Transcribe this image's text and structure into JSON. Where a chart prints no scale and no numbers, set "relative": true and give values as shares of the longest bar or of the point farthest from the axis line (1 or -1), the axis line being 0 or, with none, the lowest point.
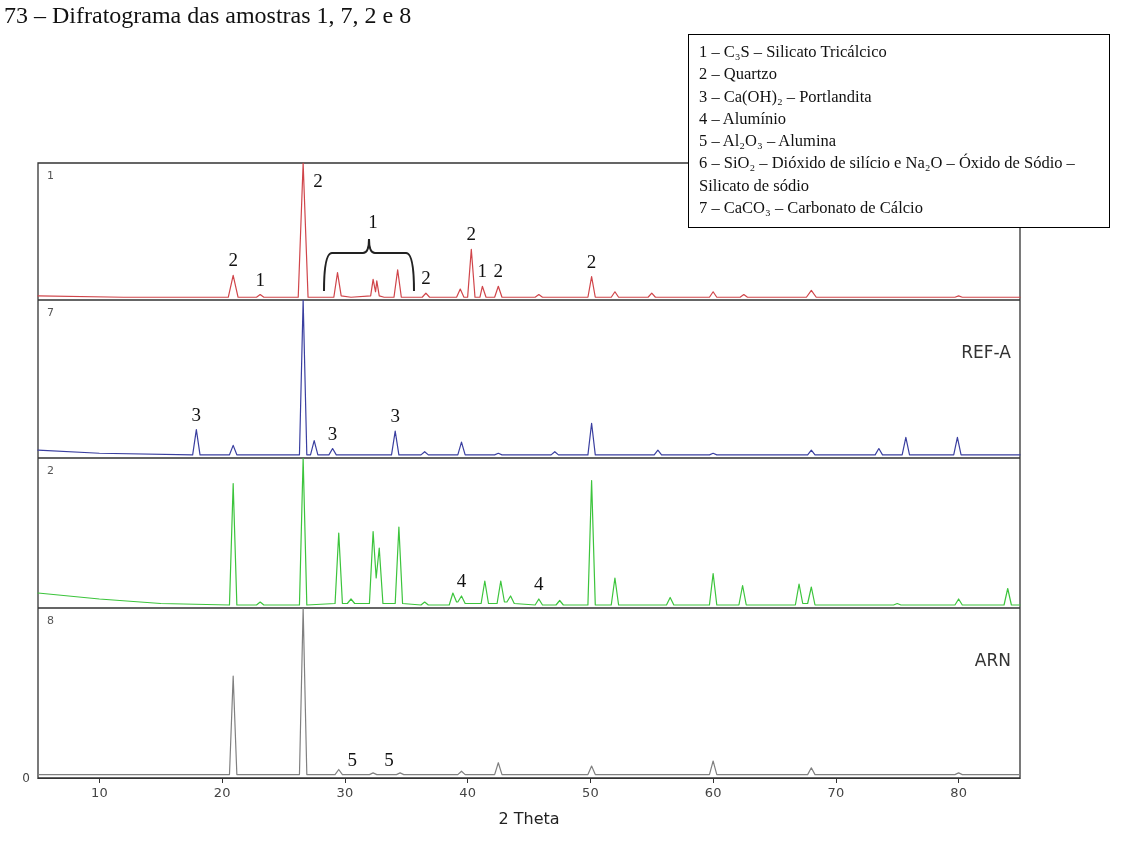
{
  "chart_data": [
    {
      "type": "other",
      "title": "73 – Difratograma das amostras 1, 7, 2 e 8",
      "annotations": [
        "1 – C₃S – Silicato Tricálcico",
        "2 – Quartzo",
        "3 – Ca(OH)₂ – Portlandita",
        "4 – Alumínio",
        "5 – Al₂O₃ – Alumina",
        "6 – SiO₂ – Dióxido de silício e Na₂O – Óxido de Sódio – Silicato de sódio",
        "7 – CaCO₃ – Carbonato de Cálcio"
      ]
    },
    {
      "type": "line",
      "title": "1",
      "relative": true,
      "xlim": [
        5,
        85
      ],
      "tick_labels": false,
      "x": [
        5,
        12,
        20.5,
        20.9,
        21.3,
        22.8,
        23.1,
        23.4,
        26.2,
        26.6,
        27.0,
        29.1,
        29.4,
        29.7,
        30.5,
        32.1,
        32.3,
        32.5,
        32.6,
        32.8,
        33.2,
        34.0,
        34.3,
        34.6,
        36.3,
        36.6,
        36.9,
        39.1,
        39.4,
        39.7,
        40.0,
        40.3,
        40.6,
        41.0,
        41.2,
        41.5,
        42.2,
        42.5,
        42.8,
        45.5,
        45.8,
        46.1,
        49.8,
        50.1,
        50.4,
        51.7,
        52.0,
        52.3,
        54.7,
        55.0,
        55.3,
        59.7,
        60.0,
        60.3,
        62.2,
        62.5,
        62.8,
        67.6,
        68.0,
        68.4,
        79.7,
        80.0,
        80.3,
        85
      ],
      "series": [
        {
          "color": "#d0454a",
          "values": [
            0.03,
            0.02,
            0.02,
            0.18,
            0.02,
            0.02,
            0.04,
            0.02,
            0.02,
            1,
            0.02,
            0.02,
            0.2,
            0.03,
            0.02,
            0.03,
            0.15,
            0.06,
            0.14,
            0.03,
            0.02,
            0.02,
            0.22,
            0.02,
            0.02,
            0.05,
            0.02,
            0.02,
            0.08,
            0.02,
            0.02,
            0.37,
            0.02,
            0.02,
            0.1,
            0.02,
            0.02,
            0.1,
            0.02,
            0.02,
            0.04,
            0.02,
            0.02,
            0.17,
            0.02,
            0.02,
            0.06,
            0.02,
            0.02,
            0.05,
            0.02,
            0.02,
            0.06,
            0.02,
            0.02,
            0.04,
            0.02,
            0.02,
            0.07,
            0.02,
            0.02,
            0.03,
            0.02,
            0.02
          ]
        }
      ],
      "annotations": [
        {
          "text": "2",
          "x": 20.9,
          "y": 0.18
        },
        {
          "text": "1",
          "x": 23.1,
          "y": 0.04
        },
        {
          "text": "1",
          "x": 32.3,
          "y": 0.15
        },
        {
          "text": "2",
          "x": 26.6,
          "y": 1
        },
        {
          "text": "2",
          "x": 36.6,
          "y": 0.05
        },
        {
          "text": "2",
          "x": 40.3,
          "y": 0.37
        },
        {
          "text": "1",
          "x": 41.2,
          "y": 0.1
        },
        {
          "text": "2",
          "x": 42.5,
          "y": 0.1
        },
        {
          "text": "2",
          "x": 50.1,
          "y": 0.17
        }
      ]
    },
    {
      "type": "line",
      "title": "7",
      "subtitle": "REF-A",
      "relative": true,
      "xlim": [
        5,
        85
      ],
      "tick_labels": false,
      "x": [
        5,
        10,
        17.6,
        17.9,
        18.2,
        20.6,
        20.9,
        21.2,
        26.3,
        26.6,
        26.9,
        27.2,
        27.5,
        27.8,
        28.7,
        29.0,
        29.3,
        33.8,
        34.1,
        34.4,
        36.2,
        36.5,
        36.8,
        39.2,
        39.5,
        39.8,
        42.2,
        42.5,
        42.8,
        46.8,
        47.1,
        47.4,
        49.8,
        50.1,
        50.4,
        55.2,
        55.5,
        55.8,
        59.7,
        60.0,
        60.3,
        67.7,
        68.0,
        68.3,
        73.2,
        73.5,
        73.8,
        75.4,
        75.7,
        76.0,
        79.6,
        79.9,
        80.2,
        85
      ],
      "series": [
        {
          "color": "#3a3fa0",
          "values": [
            0.05,
            0.03,
            0.02,
            0.18,
            0.02,
            0.02,
            0.08,
            0.02,
            0.02,
            1,
            0.02,
            0.02,
            0.11,
            0.02,
            0.02,
            0.06,
            0.02,
            0.02,
            0.17,
            0.02,
            0.02,
            0.04,
            0.02,
            0.02,
            0.1,
            0.02,
            0.02,
            0.03,
            0.02,
            0.02,
            0.04,
            0.02,
            0.02,
            0.22,
            0.02,
            0.02,
            0.05,
            0.02,
            0.02,
            0.03,
            0.02,
            0.02,
            0.05,
            0.02,
            0.02,
            0.06,
            0.02,
            0.02,
            0.13,
            0.02,
            0.02,
            0.13,
            0.02,
            0.02
          ]
        }
      ],
      "annotations": [
        {
          "text": "3",
          "x": 17.9,
          "y": 0.18
        },
        {
          "text": "3",
          "x": 29.0,
          "y": 0.06
        },
        {
          "text": "3",
          "x": 34.1,
          "y": 0.17
        }
      ]
    },
    {
      "type": "line",
      "title": "2",
      "relative": true,
      "xlim": [
        5,
        85
      ],
      "tick_labels": false,
      "x": [
        5,
        10,
        15,
        20.6,
        20.9,
        21.2,
        22.8,
        23.1,
        23.4,
        26.3,
        26.6,
        26.9,
        29.2,
        29.5,
        29.8,
        30.2,
        30.5,
        30.8,
        32.0,
        32.3,
        32.55,
        32.8,
        33.1,
        34.1,
        34.4,
        34.7,
        36.2,
        36.5,
        36.8,
        38.5,
        38.8,
        39.1,
        39.2,
        39.5,
        39.8,
        41.1,
        41.4,
        41.7,
        42.4,
        42.7,
        43.0,
        43.2,
        43.5,
        43.8,
        45.5,
        45.8,
        46.1,
        47.2,
        47.5,
        47.8,
        49.8,
        50.1,
        50.4,
        51.7,
        52.0,
        52.3,
        56.2,
        56.5,
        56.8,
        59.7,
        60.0,
        60.3,
        62.1,
        62.4,
        62.7,
        66.7,
        67.0,
        67.3,
        67.7,
        68.0,
        68.3,
        74.7,
        75.0,
        75.3,
        79.7,
        80.0,
        80.3,
        83.7,
        84.0,
        84.3,
        85
      ],
      "series": [
        {
          "color": "#3cc43c",
          "values": [
            0.1,
            0.06,
            0.03,
            0.02,
            0.83,
            0.02,
            0.02,
            0.04,
            0.02,
            0.02,
            1,
            0.02,
            0.03,
            0.5,
            0.03,
            0.03,
            0.06,
            0.03,
            0.03,
            0.51,
            0.2,
            0.4,
            0.03,
            0.03,
            0.54,
            0.03,
            0.02,
            0.04,
            0.02,
            0.02,
            0.1,
            0.04,
            0.04,
            0.08,
            0.03,
            0.03,
            0.18,
            0.03,
            0.03,
            0.18,
            0.04,
            0.04,
            0.08,
            0.03,
            0.02,
            0.06,
            0.02,
            0.02,
            0.05,
            0.02,
            0.02,
            0.85,
            0.02,
            0.02,
            0.2,
            0.02,
            0.02,
            0.07,
            0.02,
            0.02,
            0.23,
            0.02,
            0.02,
            0.15,
            0.02,
            0.02,
            0.16,
            0.03,
            0.03,
            0.14,
            0.02,
            0.02,
            0.03,
            0.02,
            0.02,
            0.06,
            0.02,
            0.02,
            0.13,
            0.02,
            0.02
          ]
        }
      ],
      "annotations": [
        {
          "text": "4",
          "x": 39.5,
          "y": 0.08
        },
        {
          "text": "4",
          "x": 45.8,
          "y": 0.06
        }
      ]
    },
    {
      "type": "line",
      "title": "8",
      "subtitle": "ARN",
      "relative": true,
      "xlim": [
        5,
        85
      ],
      "xticks": [
        10,
        20,
        30,
        40,
        50,
        60,
        70,
        80
      ],
      "xlabel": "2 Theta",
      "tick_labels": "x",
      "x": [
        5,
        20.6,
        20.9,
        21.2,
        26.3,
        26.6,
        26.9,
        29.2,
        29.5,
        29.8,
        32.0,
        32.3,
        32.6,
        34.2,
        34.5,
        34.8,
        39.2,
        39.5,
        39.8,
        42.2,
        42.5,
        42.8,
        49.8,
        50.1,
        50.4,
        59.7,
        60.0,
        60.3,
        67.7,
        68.0,
        68.3,
        79.7,
        80.0,
        80.3,
        85
      ],
      "series": [
        {
          "color": "#808080",
          "values": [
            0.02,
            0.02,
            0.6,
            0.02,
            0.02,
            1,
            0.02,
            0.02,
            0.05,
            0.02,
            0.02,
            0.03,
            0.02,
            0.02,
            0.03,
            0.02,
            0.02,
            0.04,
            0.02,
            0.02,
            0.09,
            0.02,
            0.02,
            0.07,
            0.02,
            0.02,
            0.1,
            0.02,
            0.02,
            0.06,
            0.02,
            0.02,
            0.03,
            0.02,
            0.02
          ]
        }
      ],
      "annotations": [
        {
          "text": "0",
          "x": 5,
          "y": 0
        },
        {
          "text": "5",
          "x": 30.6,
          "y": 0.02
        },
        {
          "text": "5",
          "x": 33.6,
          "y": 0.02
        }
      ]
    }
  ]
}
